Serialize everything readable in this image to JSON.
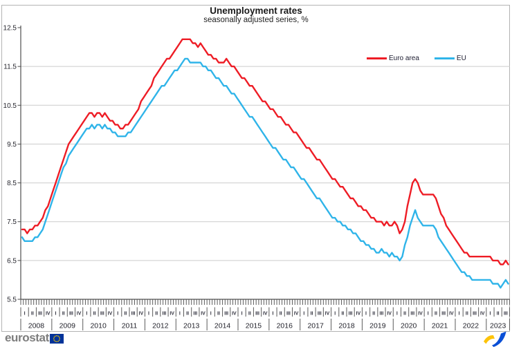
{
  "title": "Unemployment rates",
  "subtitle": "seasonally adjusted series, %",
  "legend": [
    {
      "label": "Euro area",
      "color": "#ee1c25"
    },
    {
      "label": "EU",
      "color": "#2fb4e9"
    }
  ],
  "footer": {
    "brand": "eurostat"
  },
  "chart_data": {
    "type": "line",
    "title": "Unemployment rates",
    "subtitle": "seasonally adjusted series, %",
    "unit": "%",
    "frequency": "monthly",
    "x_start": "2008-01",
    "x_end": "2023-09",
    "years": [
      2008,
      2009,
      2010,
      2011,
      2012,
      2013,
      2014,
      2015,
      2016,
      2017,
      2018,
      2019,
      2020,
      2021,
      2022,
      2023
    ],
    "months_in_last_year": 9,
    "quarter_labels": [
      "I",
      "II",
      "III",
      "IV"
    ],
    "ylim": [
      5.5,
      12.5
    ],
    "yticks": [
      5.5,
      6.5,
      7.5,
      8.5,
      9.5,
      10.5,
      11.5,
      12.5
    ],
    "grid": true,
    "legend_position": "top-right",
    "series": [
      {
        "name": "Euro area",
        "color": "#ee1c25",
        "values": [
          7.3,
          7.3,
          7.2,
          7.3,
          7.3,
          7.4,
          7.4,
          7.5,
          7.6,
          7.8,
          7.9,
          8.1,
          8.3,
          8.5,
          8.7,
          8.9,
          9.1,
          9.3,
          9.5,
          9.6,
          9.7,
          9.8,
          9.9,
          10.0,
          10.1,
          10.2,
          10.3,
          10.3,
          10.2,
          10.3,
          10.3,
          10.2,
          10.3,
          10.2,
          10.1,
          10.1,
          10.0,
          10.0,
          9.9,
          9.9,
          10.0,
          10.0,
          10.1,
          10.2,
          10.3,
          10.4,
          10.6,
          10.7,
          10.8,
          10.9,
          11.0,
          11.2,
          11.3,
          11.4,
          11.5,
          11.6,
          11.7,
          11.7,
          11.8,
          11.9,
          12.0,
          12.1,
          12.2,
          12.2,
          12.2,
          12.2,
          12.1,
          12.1,
          12.0,
          12.1,
          12.0,
          11.9,
          11.8,
          11.8,
          11.7,
          11.7,
          11.6,
          11.6,
          11.6,
          11.7,
          11.6,
          11.5,
          11.5,
          11.4,
          11.3,
          11.2,
          11.2,
          11.1,
          11.0,
          11.0,
          10.9,
          10.8,
          10.7,
          10.6,
          10.6,
          10.5,
          10.4,
          10.4,
          10.3,
          10.2,
          10.2,
          10.1,
          10.0,
          10.0,
          9.9,
          9.8,
          9.8,
          9.7,
          9.6,
          9.5,
          9.4,
          9.4,
          9.3,
          9.2,
          9.1,
          9.1,
          9.0,
          8.9,
          8.8,
          8.7,
          8.6,
          8.6,
          8.5,
          8.4,
          8.4,
          8.3,
          8.2,
          8.1,
          8.1,
          8.0,
          7.9,
          7.9,
          7.8,
          7.8,
          7.7,
          7.6,
          7.6,
          7.5,
          7.5,
          7.5,
          7.4,
          7.5,
          7.4,
          7.4,
          7.5,
          7.4,
          7.2,
          7.3,
          7.5,
          7.9,
          8.2,
          8.5,
          8.6,
          8.5,
          8.3,
          8.2,
          8.2,
          8.2,
          8.2,
          8.2,
          8.1,
          7.9,
          7.7,
          7.6,
          7.4,
          7.3,
          7.2,
          7.1,
          7.0,
          6.9,
          6.8,
          6.7,
          6.7,
          6.6,
          6.6,
          6.6,
          6.6,
          6.6,
          6.6,
          6.6,
          6.6,
          6.6,
          6.5,
          6.5,
          6.5,
          6.4,
          6.4,
          6.5,
          6.4
        ]
      },
      {
        "name": "EU",
        "color": "#2fb4e9",
        "values": [
          7.1,
          7.0,
          7.0,
          7.0,
          7.0,
          7.1,
          7.1,
          7.2,
          7.3,
          7.5,
          7.7,
          7.9,
          8.1,
          8.3,
          8.5,
          8.7,
          8.9,
          9.0,
          9.2,
          9.3,
          9.4,
          9.5,
          9.6,
          9.7,
          9.8,
          9.9,
          9.9,
          10.0,
          9.9,
          10.0,
          10.0,
          9.9,
          10.0,
          9.9,
          9.9,
          9.8,
          9.8,
          9.7,
          9.7,
          9.7,
          9.7,
          9.8,
          9.8,
          9.9,
          10.0,
          10.1,
          10.2,
          10.3,
          10.4,
          10.5,
          10.6,
          10.7,
          10.8,
          10.9,
          11.0,
          11.0,
          11.1,
          11.2,
          11.3,
          11.4,
          11.4,
          11.5,
          11.6,
          11.7,
          11.7,
          11.6,
          11.6,
          11.6,
          11.6,
          11.6,
          11.5,
          11.5,
          11.4,
          11.4,
          11.3,
          11.2,
          11.2,
          11.1,
          11.0,
          11.0,
          10.9,
          10.8,
          10.8,
          10.7,
          10.6,
          10.5,
          10.4,
          10.3,
          10.2,
          10.2,
          10.1,
          10.0,
          9.9,
          9.8,
          9.7,
          9.6,
          9.5,
          9.4,
          9.4,
          9.3,
          9.2,
          9.1,
          9.1,
          9.0,
          8.9,
          8.9,
          8.8,
          8.7,
          8.6,
          8.6,
          8.5,
          8.4,
          8.3,
          8.2,
          8.1,
          8.1,
          8.0,
          7.9,
          7.8,
          7.7,
          7.6,
          7.6,
          7.5,
          7.5,
          7.4,
          7.4,
          7.3,
          7.3,
          7.2,
          7.2,
          7.1,
          7.0,
          7.0,
          6.9,
          6.9,
          6.8,
          6.8,
          6.7,
          6.7,
          6.8,
          6.7,
          6.7,
          6.6,
          6.7,
          6.6,
          6.6,
          6.5,
          6.6,
          6.9,
          7.1,
          7.4,
          7.6,
          7.8,
          7.6,
          7.5,
          7.4,
          7.4,
          7.4,
          7.4,
          7.4,
          7.3,
          7.1,
          7.0,
          6.9,
          6.8,
          6.7,
          6.6,
          6.5,
          6.4,
          6.3,
          6.2,
          6.2,
          6.1,
          6.1,
          6.0,
          6.0,
          6.0,
          6.0,
          6.0,
          6.0,
          6.0,
          6.0,
          5.9,
          5.9,
          5.9,
          5.8,
          5.9,
          6.0,
          5.9
        ]
      }
    ]
  }
}
